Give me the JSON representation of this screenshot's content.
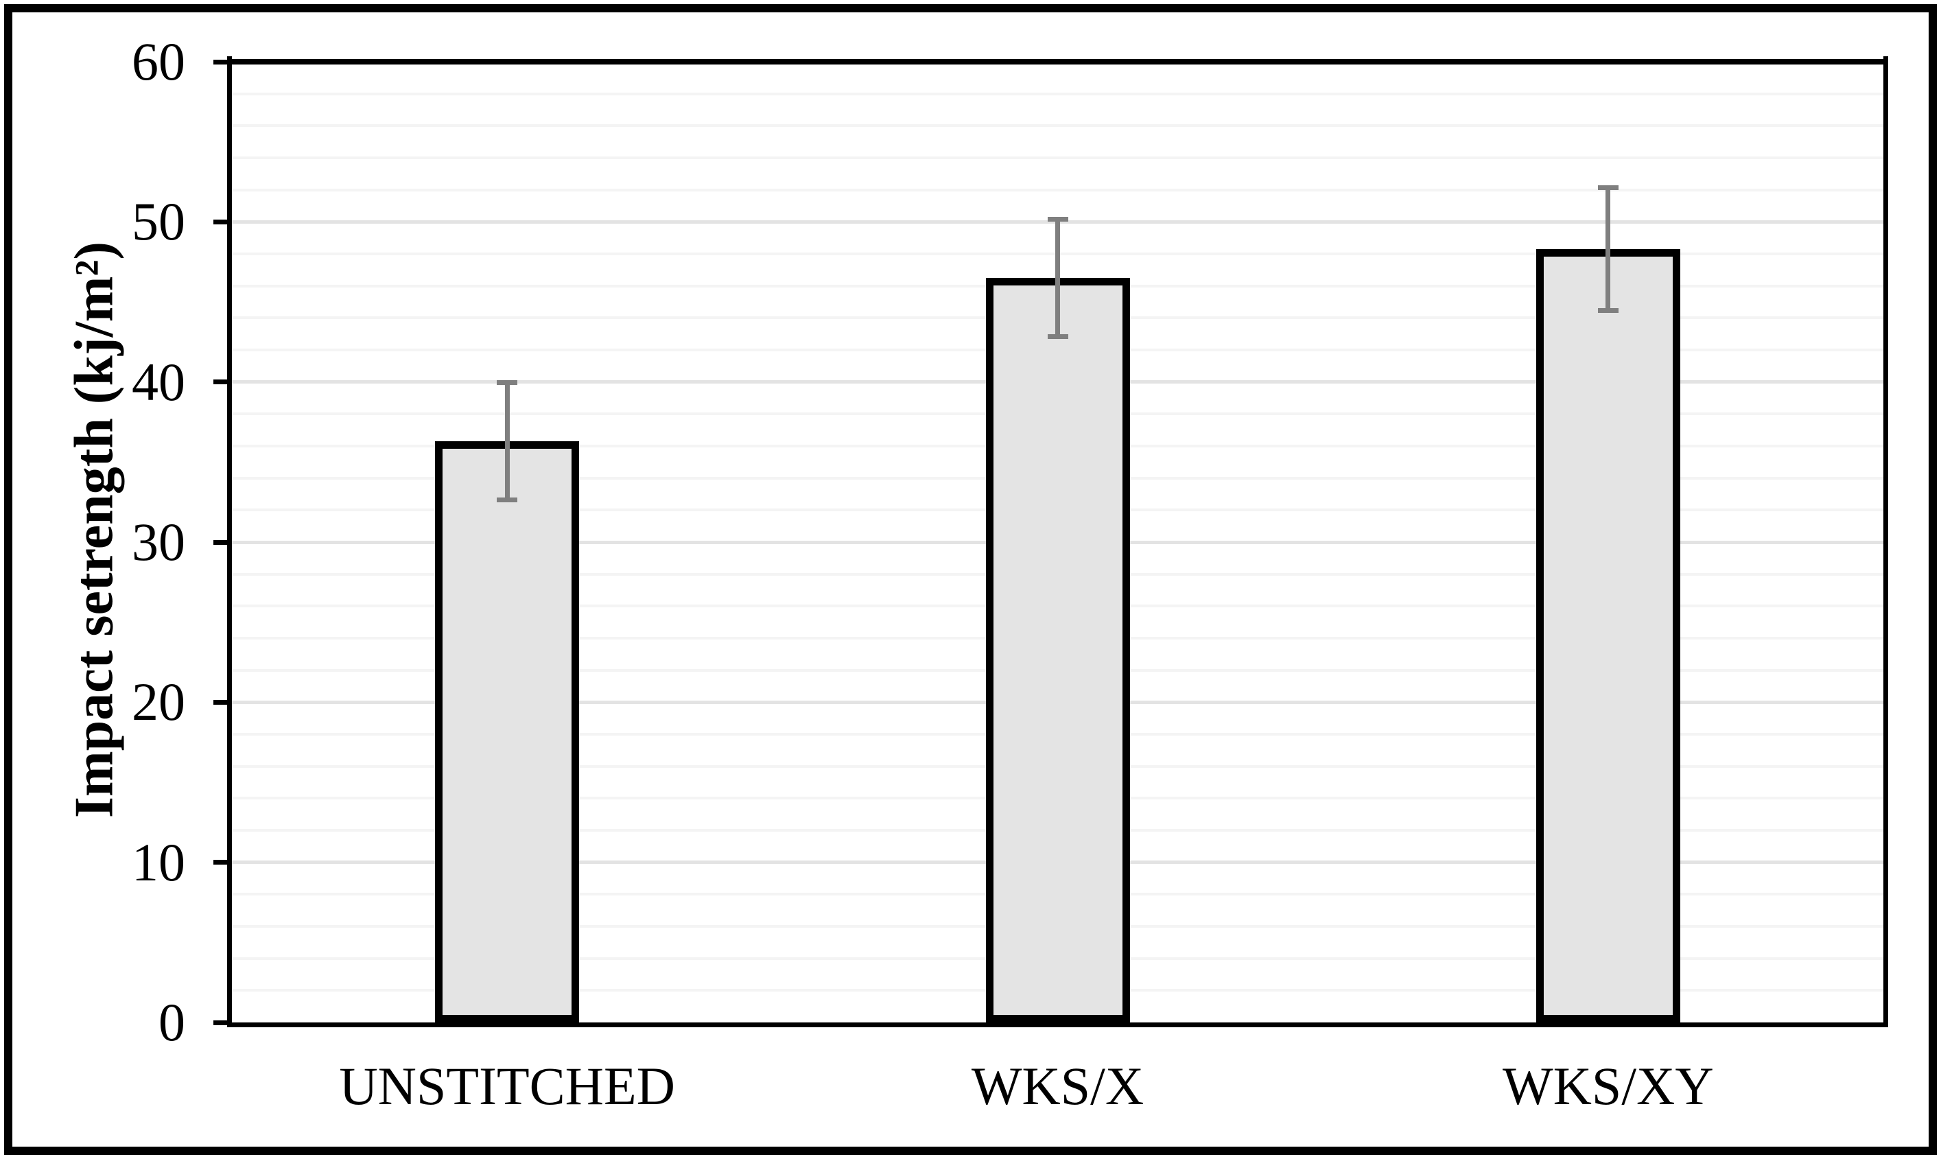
{
  "chart_data": {
    "type": "bar",
    "title": "",
    "categories": [
      "UNSTITCHED",
      "WKS/X",
      "WKS/XY"
    ],
    "values": [
      36.3,
      46.5,
      48.3
    ],
    "error_bars": [
      3.8,
      3.8,
      4.0
    ],
    "xlabel": "",
    "ylabel": "Impact setrength (kj/m²)",
    "ylim": [
      0,
      60
    ],
    "yticks": [
      0,
      10,
      20,
      30,
      40,
      50,
      60
    ],
    "grid": {
      "minor_step": 2,
      "major_step": 10,
      "visible": true
    },
    "legend": "none",
    "colors": {
      "bar_fill": "#e4e4e4",
      "bar_border": "#000000",
      "error_bar": "#7f7f7f",
      "grid_minor": "#f4f4f4",
      "grid_major": "#e3e3e3",
      "axis": "#000000",
      "frame": "#000000",
      "background": "#ffffff",
      "text": "#000000"
    }
  }
}
